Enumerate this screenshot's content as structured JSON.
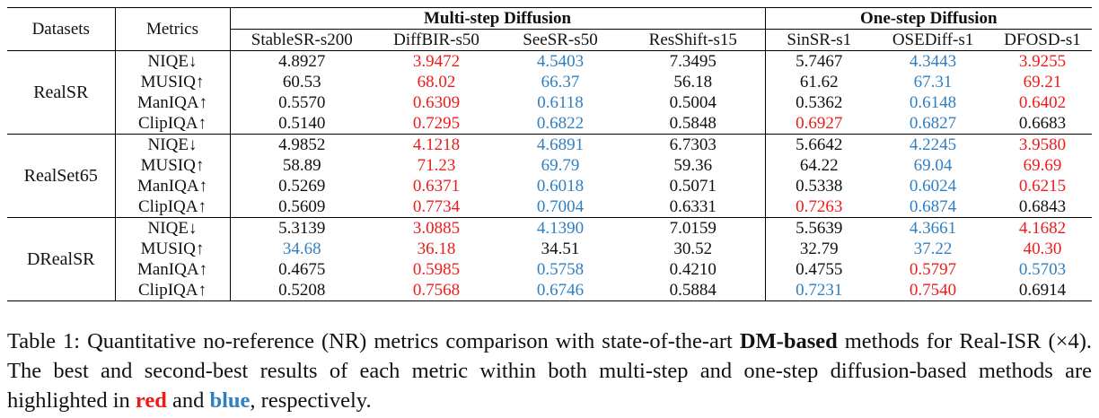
{
  "table": {
    "col_datasets": "Datasets",
    "col_metrics": "Metrics",
    "group_multi": "Multi-step Diffusion",
    "group_one": "One-step Diffusion",
    "methods": [
      "StableSR-s200",
      "DiffBIR-s50",
      "SeeSR-s50",
      "ResShift-s15",
      "SinSR-s1",
      "OSEDiff-s1",
      "DFOSD-s1"
    ],
    "metrics": [
      "NIQE↓",
      "MUSIQ↑",
      "ManIQA↑",
      "ClipIQA↑"
    ],
    "datasets": [
      {
        "name": "RealSR",
        "rows": [
          {
            "values": [
              "4.8927",
              "3.9472",
              "4.5403",
              "7.3495",
              "5.7467",
              "4.3443",
              "3.9255"
            ],
            "styles": [
              "",
              "red",
              "blue",
              "",
              "",
              "blue-bold",
              "red-bold"
            ]
          },
          {
            "values": [
              "60.53",
              "68.02",
              "66.37",
              "56.18",
              "61.62",
              "67.31",
              "69.21"
            ],
            "styles": [
              "",
              "red",
              "blue",
              "",
              "",
              "blue-bold",
              "red-bold"
            ]
          },
          {
            "values": [
              "0.5570",
              "0.6309",
              "0.6118",
              "0.5004",
              "0.5362",
              "0.6148",
              "0.6402"
            ],
            "styles": [
              "",
              "red",
              "blue",
              "",
              "",
              "blue-bold",
              "red-bold"
            ]
          },
          {
            "values": [
              "0.5140",
              "0.7295",
              "0.6822",
              "0.5848",
              "0.6927",
              "0.6827",
              "0.6683"
            ],
            "styles": [
              "",
              "red",
              "blue",
              "",
              "red-bold",
              "blue-bold",
              ""
            ]
          }
        ]
      },
      {
        "name": "RealSet65",
        "rows": [
          {
            "values": [
              "4.9852",
              "4.1218",
              "4.6891",
              "6.7303",
              "5.6642",
              "4.2245",
              "3.9580"
            ],
            "styles": [
              "",
              "red",
              "blue",
              "",
              "",
              "blue-bold",
              "red-bold"
            ]
          },
          {
            "values": [
              "58.89",
              "71.23",
              "69.79",
              "59.36",
              "64.22",
              "69.04",
              "69.69"
            ],
            "styles": [
              "",
              "red",
              "blue",
              "",
              "",
              "blue-bold",
              "red-bold"
            ]
          },
          {
            "values": [
              "0.5269",
              "0.6371",
              "0.6018",
              "0.5071",
              "0.5338",
              "0.6024",
              "0.6215"
            ],
            "styles": [
              "",
              "red",
              "blue",
              "",
              "",
              "blue-bold",
              "red-bold"
            ]
          },
          {
            "values": [
              "0.5609",
              "0.7734",
              "0.7004",
              "0.6331",
              "0.7263",
              "0.6874",
              "0.6843"
            ],
            "styles": [
              "",
              "red",
              "blue",
              "",
              "red-bold",
              "blue-bold",
              ""
            ]
          }
        ]
      },
      {
        "name": "DRealSR",
        "rows": [
          {
            "values": [
              "5.3139",
              "3.0885",
              "4.1390",
              "7.0159",
              "5.5639",
              "4.3661",
              "4.1682"
            ],
            "styles": [
              "",
              "red",
              "blue",
              "",
              "",
              "blue-bold",
              "red-bold"
            ]
          },
          {
            "values": [
              "34.68",
              "36.18",
              "34.51",
              "30.52",
              "32.79",
              "37.22",
              "40.30"
            ],
            "styles": [
              "blue",
              "red",
              "",
              "",
              "",
              "blue-bold",
              "red-bold"
            ]
          },
          {
            "values": [
              "0.4675",
              "0.5985",
              "0.5758",
              "0.4210",
              "0.4755",
              "0.5797",
              "0.5703"
            ],
            "styles": [
              "",
              "red",
              "blue",
              "",
              "",
              "red-bold",
              "blue-bold"
            ]
          },
          {
            "values": [
              "0.5208",
              "0.7568",
              "0.6746",
              "0.5884",
              "0.7231",
              "0.7540",
              "0.6914"
            ],
            "styles": [
              "",
              "red",
              "blue",
              "",
              "blue-bold",
              "red-bold",
              ""
            ]
          }
        ]
      }
    ]
  },
  "caption": {
    "part1": "Table 1: Quantitative no-reference (NR) metrics comparison with state-of-the-art ",
    "bold1": "DM-based",
    "part2": " methods for Real-ISR (×4).  The best and second-best results of each metric within both multi-step and one-step diffusion-based methods are highlighted in ",
    "red_word": "red",
    "part3": " and ",
    "blue_word": "blue",
    "part4": ", respectively."
  },
  "colors": {
    "best": "#ef1b1b",
    "second": "#2f7fc1"
  }
}
